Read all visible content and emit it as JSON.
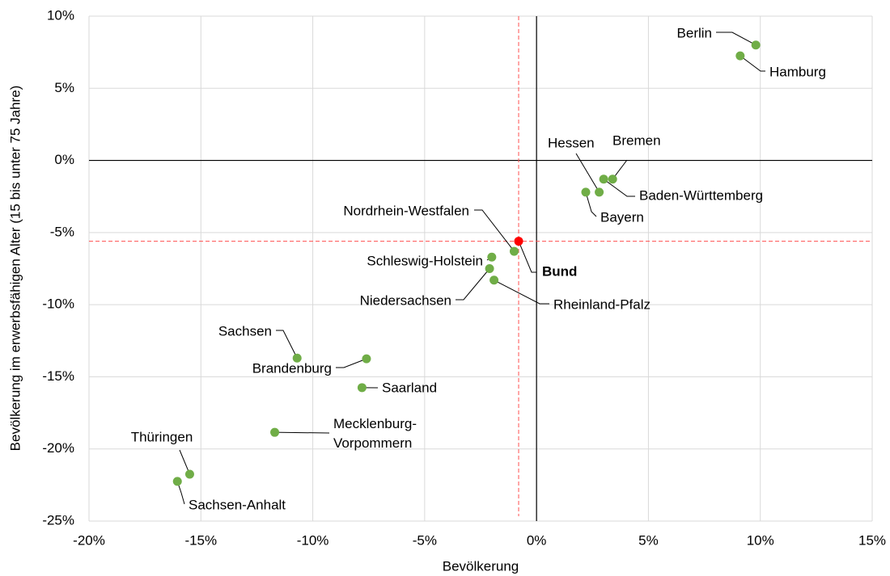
{
  "chart_data": {
    "type": "scatter",
    "xlabel": "Bevölkerung",
    "ylabel": "Bevölkerung im erwerbsfähigen Alter (15 bis unter 75 Jahre)",
    "xlim": [
      -20,
      15
    ],
    "ylim": [
      -25,
      10
    ],
    "xticks": [
      {
        "value": -20,
        "label": "-20%"
      },
      {
        "value": -15,
        "label": "-15%"
      },
      {
        "value": -10,
        "label": "-10%"
      },
      {
        "value": -5,
        "label": "-5%"
      },
      {
        "value": 0,
        "label": "0%"
      },
      {
        "value": 5,
        "label": "5%"
      },
      {
        "value": 10,
        "label": "10%"
      },
      {
        "value": 15,
        "label": "15%"
      }
    ],
    "yticks": [
      {
        "value": 10,
        "label": "10%"
      },
      {
        "value": 5,
        "label": "5%"
      },
      {
        "value": 0,
        "label": "0%"
      },
      {
        "value": -5,
        "label": "-5%"
      },
      {
        "value": -10,
        "label": "-10%"
      },
      {
        "value": -15,
        "label": "-15%"
      },
      {
        "value": -20,
        "label": "-20%"
      },
      {
        "value": -25,
        "label": "-25%"
      }
    ],
    "grid": true,
    "color": "#70ad47",
    "highlight_color": "#ff0000",
    "points": [
      {
        "label": "Berlin",
        "x": 9.8,
        "y": 8.0
      },
      {
        "label": "Hamburg",
        "x": 9.1,
        "y": 7.25
      },
      {
        "label": "Hessen",
        "x": 2.8,
        "y": -2.2
      },
      {
        "label": "Bremen",
        "x": 3.4,
        "y": -1.3
      },
      {
        "label": "Baden-Württemberg",
        "x": 3.0,
        "y": -1.3
      },
      {
        "label": "Bayern",
        "x": 2.2,
        "y": -2.2
      },
      {
        "label": "Nordrhein-Westfalen",
        "x": -1.0,
        "y": -6.3
      },
      {
        "label": "Bund",
        "x": -0.8,
        "y": -5.6,
        "highlight": true
      },
      {
        "label": "Schleswig-Holstein",
        "x": -2.0,
        "y": -6.7
      },
      {
        "label": "Niedersachsen",
        "x": -2.1,
        "y": -7.5
      },
      {
        "label": "Rheinland-Pfalz",
        "x": -1.9,
        "y": -8.3
      },
      {
        "label": "Sachsen",
        "x": -10.7,
        "y": -13.7
      },
      {
        "label": "Brandenburg",
        "x": -7.6,
        "y": -13.75
      },
      {
        "label": "Saarland",
        "x": -7.8,
        "y": -15.75
      },
      {
        "label": "Mecklenburg-Vorpommern",
        "x": -11.7,
        "y": -18.85
      },
      {
        "label": "Thüringen",
        "x": -15.5,
        "y": -21.75
      },
      {
        "label": "Sachsen-Anhalt",
        "x": -16.05,
        "y": -22.25
      }
    ]
  }
}
